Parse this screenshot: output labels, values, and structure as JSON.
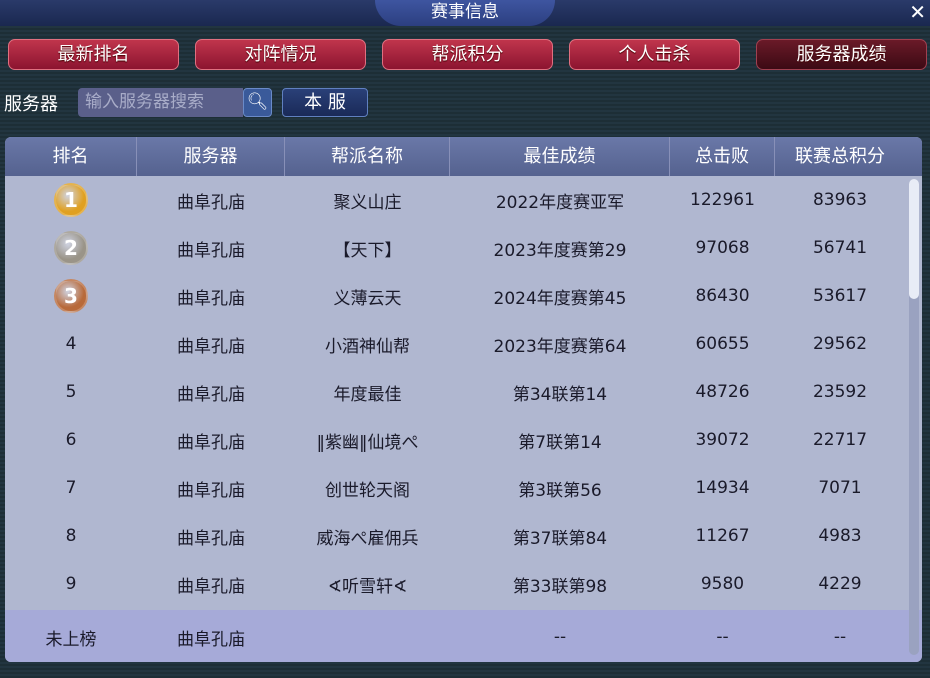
{
  "window": {
    "title": "赛事信息",
    "close": "✕"
  },
  "tabs": [
    {
      "label": "最新排名"
    },
    {
      "label": "对阵情况"
    },
    {
      "label": "帮派积分"
    },
    {
      "label": "个人击杀"
    },
    {
      "label": "服务器成绩",
      "active": true
    }
  ],
  "search": {
    "label": "服务器",
    "placeholder": "输入服务器搜索",
    "icon": "search-icon",
    "local_button": "本 服"
  },
  "table": {
    "headers": [
      "排名",
      "服务器",
      "帮派名称",
      "最佳成绩",
      "总击败",
      "联赛总积分"
    ],
    "rows": [
      [
        "1",
        "曲阜孔庙",
        "聚义山庄",
        "2022年度赛亚军",
        "122961",
        "83963"
      ],
      [
        "2",
        "曲阜孔庙",
        "【天下】",
        "2023年度赛第29",
        "97068",
        "56741"
      ],
      [
        "3",
        "曲阜孔庙",
        "义薄云天",
        "2024年度赛第45",
        "86430",
        "53617"
      ],
      [
        "4",
        "曲阜孔庙",
        "小酒神仙帮",
        "2023年度赛第64",
        "60655",
        "29562"
      ],
      [
        "5",
        "曲阜孔庙",
        "年度最佳",
        "第34联第14",
        "48726",
        "23592"
      ],
      [
        "6",
        "曲阜孔庙",
        "‖紫幽‖仙境ぺ",
        "第7联第14",
        "39072",
        "22717"
      ],
      [
        "7",
        "曲阜孔庙",
        "创世轮天阁",
        "第3联第56",
        "14934",
        "7071"
      ],
      [
        "8",
        "曲阜孔庙",
        "威海ぺ雇佣兵",
        "第37联第84",
        "11267",
        "4983"
      ],
      [
        "9",
        "曲阜孔庙",
        "∢听雪轩∢",
        "第33联第98",
        "9580",
        "4229"
      ]
    ],
    "mine": [
      "未上榜",
      "曲阜孔庙",
      "",
      "--",
      "--",
      "--"
    ],
    "medal_colors": [
      "#e0a020",
      "#9a9488",
      "#b86a3a"
    ]
  }
}
